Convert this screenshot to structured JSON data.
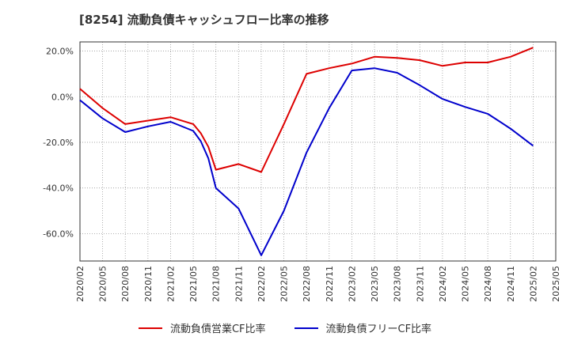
{
  "chart_data": {
    "type": "line",
    "title": "[8254]  流動負債キャッシュフロー比率の推移",
    "xlabel": "",
    "ylabel": "",
    "ylim": [
      -72,
      24
    ],
    "y_ticks": [
      20,
      0,
      -20,
      -40,
      -60
    ],
    "y_tick_labels": [
      "20.0%",
      "0.0%",
      "-20.0%",
      "-40.0%",
      "-60.0%"
    ],
    "x_tick_labels": [
      "2020/02",
      "2020/05",
      "2020/08",
      "2020/11",
      "2021/02",
      "2021/05",
      "2021/08",
      "2021/11",
      "2022/02",
      "2022/05",
      "2022/08",
      "2022/11",
      "2023/02",
      "2023/05",
      "2023/08",
      "2023/11",
      "2024/02",
      "2024/05",
      "2024/08",
      "2024/11",
      "2025/02",
      "2025/05"
    ],
    "grid": true,
    "legend_position": "bottom",
    "series": [
      {
        "name": "流動負債営業CF比率",
        "color": "#dd0000",
        "points": [
          [
            "2020/02",
            3.5
          ],
          [
            "2020/05",
            -5
          ],
          [
            "2020/08",
            -12
          ],
          [
            "2020/11",
            -10.5
          ],
          [
            "2021/02",
            -9
          ],
          [
            "2021/05",
            -12
          ],
          [
            "2021/06",
            -16
          ],
          [
            "2021/07",
            -22
          ],
          [
            "2021/08",
            -32
          ],
          [
            "2021/11",
            -29.5
          ],
          [
            "2022/02",
            -33
          ],
          [
            "2022/05",
            -12
          ],
          [
            "2022/08",
            10
          ],
          [
            "2022/11",
            12.5
          ],
          [
            "2023/02",
            14.5
          ],
          [
            "2023/05",
            17.5
          ],
          [
            "2023/08",
            17
          ],
          [
            "2023/11",
            16
          ],
          [
            "2024/02",
            13.5
          ],
          [
            "2024/05",
            15
          ],
          [
            "2024/08",
            15
          ],
          [
            "2024/11",
            17.5
          ],
          [
            "2025/02",
            21.5
          ]
        ]
      },
      {
        "name": "流動負債フリーCF比率",
        "color": "#0000cc",
        "points": [
          [
            "2020/02",
            -1.5
          ],
          [
            "2020/05",
            -9.5
          ],
          [
            "2020/08",
            -15.5
          ],
          [
            "2020/11",
            -13
          ],
          [
            "2021/02",
            -11
          ],
          [
            "2021/05",
            -15
          ],
          [
            "2021/06",
            -19.5
          ],
          [
            "2021/07",
            -27
          ],
          [
            "2021/08",
            -40
          ],
          [
            "2021/11",
            -49
          ],
          [
            "2022/02",
            -69.5
          ],
          [
            "2022/05",
            -50
          ],
          [
            "2022/08",
            -24.5
          ],
          [
            "2022/11",
            -5
          ],
          [
            "2023/02",
            11.5
          ],
          [
            "2023/05",
            12.5
          ],
          [
            "2023/08",
            10.5
          ],
          [
            "2023/11",
            5
          ],
          [
            "2024/02",
            -1
          ],
          [
            "2024/05",
            -4.5
          ],
          [
            "2024/08",
            -7.5
          ],
          [
            "2024/11",
            -14
          ],
          [
            "2025/02",
            -21.5
          ]
        ]
      }
    ]
  }
}
